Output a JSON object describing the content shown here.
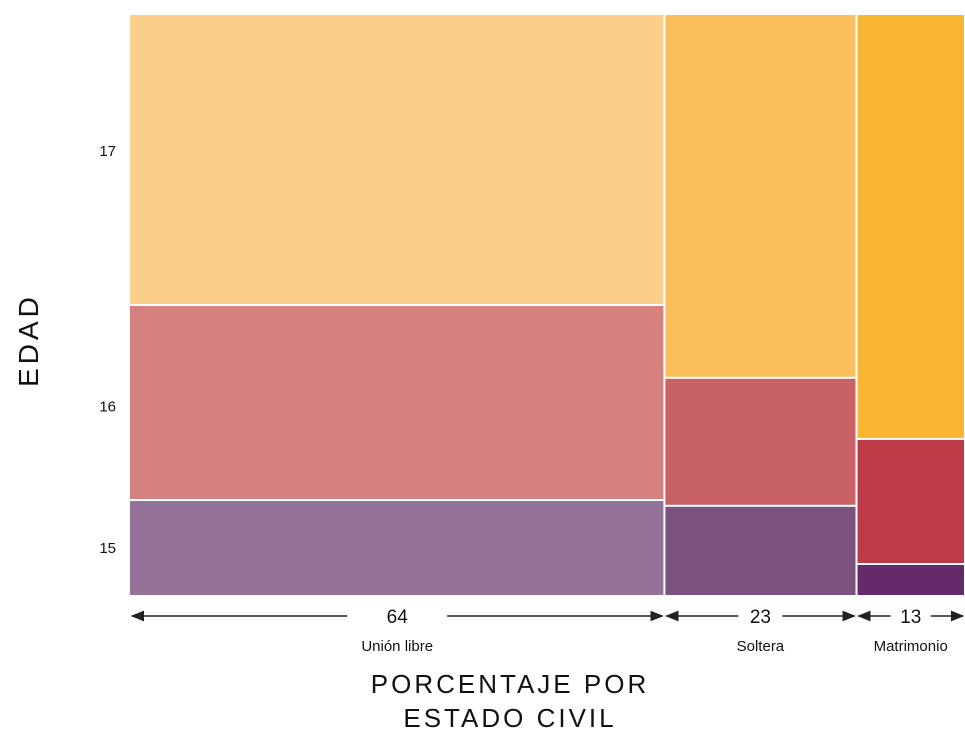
{
  "chart_data": {
    "type": "mosaic",
    "ylabel": "EDAD",
    "xlabel_lines": [
      "PORCENTAJE POR",
      "ESTADO CIVIL"
    ],
    "age_tick_labels": [
      "17",
      "16",
      "15"
    ],
    "columns": [
      {
        "category": "Unión libre",
        "width_label": "64",
        "width": 64,
        "segments": [
          {
            "age": "15",
            "share": 0.165,
            "color": "#957398"
          },
          {
            "age": "16",
            "share": 0.335,
            "color": "#d5817f"
          },
          {
            "age": "17",
            "share": 0.5,
            "color": "#f9cf8a"
          }
        ]
      },
      {
        "category": "Soltera",
        "width_label": "23",
        "width": 23,
        "segments": [
          {
            "age": "15",
            "share": 0.155,
            "color": "#7c537e"
          },
          {
            "age": "16",
            "share": 0.22,
            "color": "#c86264"
          },
          {
            "age": "17",
            "share": 0.625,
            "color": "#f9bf5c"
          }
        ]
      },
      {
        "category": "Matrimonio",
        "width_label": "13",
        "width": 13,
        "segments": [
          {
            "age": "15",
            "share": 0.055,
            "color": "#66296b"
          },
          {
            "age": "16",
            "share": 0.215,
            "color": "#bd3a47"
          },
          {
            "age": "17",
            "share": 0.73,
            "color": "#f8b532"
          }
        ]
      }
    ]
  }
}
